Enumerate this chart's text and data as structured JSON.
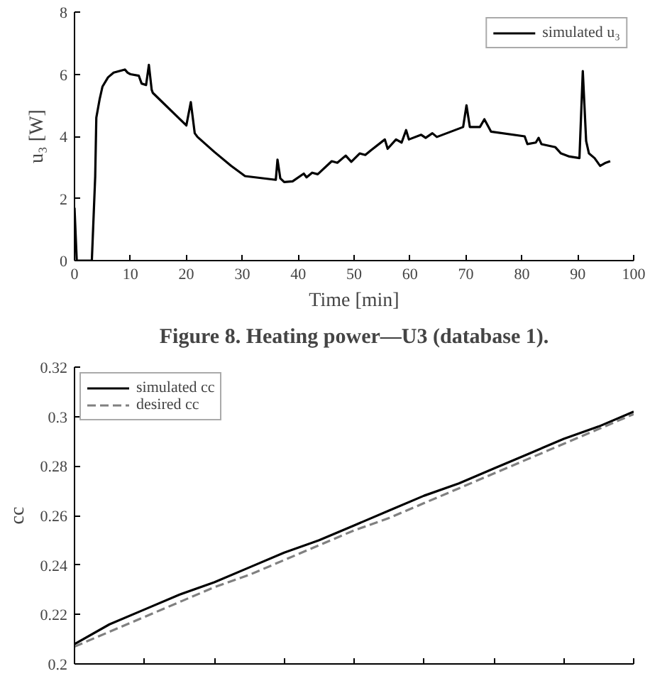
{
  "chart_data": [
    {
      "type": "line",
      "xlabel": "Time [min]",
      "ylabel": "u₃ [W]",
      "annotations": [
        "Figure 8. Heating power—U3 (database 1)."
      ],
      "xlim": [
        0,
        100
      ],
      "ylim": [
        0,
        8
      ],
      "xticks": [
        0,
        10,
        20,
        30,
        40,
        50,
        60,
        70,
        80,
        90,
        100
      ],
      "yticks": [
        0,
        2,
        4,
        6,
        8
      ],
      "grid": false,
      "legend": "top right",
      "x": [
        0,
        0.4,
        3.1,
        3.7,
        3.9,
        4.5,
        5,
        6,
        7,
        9,
        9.5,
        10,
        11.5,
        12,
        12.8,
        13.3,
        13.8,
        14,
        20,
        20.8,
        21.5,
        22,
        25,
        28,
        30.5,
        36,
        36.3,
        36.8,
        37.5,
        39,
        41,
        41.5,
        42.5,
        43.5,
        46,
        47,
        48.5,
        49.5,
        51,
        52,
        53,
        55.5,
        56,
        57.5,
        58.5,
        59.3,
        59.8,
        62,
        62.8,
        64,
        64.8,
        69.5,
        70.1,
        70.7,
        72.5,
        73.3,
        74.5,
        80.5,
        81,
        82.5,
        83,
        83.5,
        86,
        87,
        88.5,
        90.3,
        90.9,
        91.5,
        92,
        93,
        94,
        95,
        95.8
      ],
      "series": [
        {
          "name": "simulated u₃",
          "color": "#000000",
          "line_style": "solid",
          "values": [
            1.7,
            0,
            0,
            2.7,
            4.6,
            5.2,
            5.6,
            5.9,
            6.05,
            6.15,
            6.05,
            6.0,
            5.95,
            5.7,
            5.65,
            6.3,
            5.5,
            5.4,
            4.35,
            5.1,
            4.1,
            3.98,
            3.5,
            3.05,
            2.72,
            2.6,
            3.25,
            2.65,
            2.53,
            2.55,
            2.8,
            2.68,
            2.83,
            2.78,
            3.2,
            3.15,
            3.38,
            3.18,
            3.45,
            3.4,
            3.55,
            3.9,
            3.6,
            3.9,
            3.8,
            4.2,
            3.9,
            4.05,
            3.95,
            4.1,
            3.98,
            4.3,
            5.0,
            4.3,
            4.3,
            4.55,
            4.15,
            4.0,
            3.75,
            3.8,
            3.95,
            3.75,
            3.65,
            3.45,
            3.35,
            3.3,
            6.1,
            3.85,
            3.45,
            3.3,
            3.05,
            3.15,
            3.2
          ]
        }
      ]
    },
    {
      "type": "line",
      "ylabel": "cc",
      "categories": [
        null,
        null,
        null,
        null,
        null,
        null,
        null,
        null,
        null,
        null,
        null,
        null,
        null,
        null,
        null,
        null,
        null
      ],
      "ylim": [
        0.2,
        0.32
      ],
      "yticks": [
        0.2,
        0.22,
        0.24,
        0.26,
        0.28,
        0.3,
        0.32
      ],
      "tick_labels": "y",
      "grid": false,
      "legend": "top left",
      "series": [
        {
          "name": "simulated cc",
          "color": "#000000",
          "line_style": "solid",
          "values": [
            0.208,
            0.216,
            0.222,
            0.228,
            0.233,
            0.239,
            0.245,
            0.25,
            0.256,
            0.262,
            0.268,
            0.273,
            0.279,
            0.285,
            0.291,
            0.296,
            0.302
          ]
        },
        {
          "name": "desired cc",
          "color": "#808080",
          "line_style": "dashed",
          "values": [
            0.207,
            0.213,
            0.219,
            0.225,
            0.231,
            0.236,
            0.242,
            0.248,
            0.254,
            0.259,
            0.265,
            0.271,
            0.277,
            0.283,
            0.289,
            0.295,
            0.301
          ]
        }
      ]
    }
  ]
}
